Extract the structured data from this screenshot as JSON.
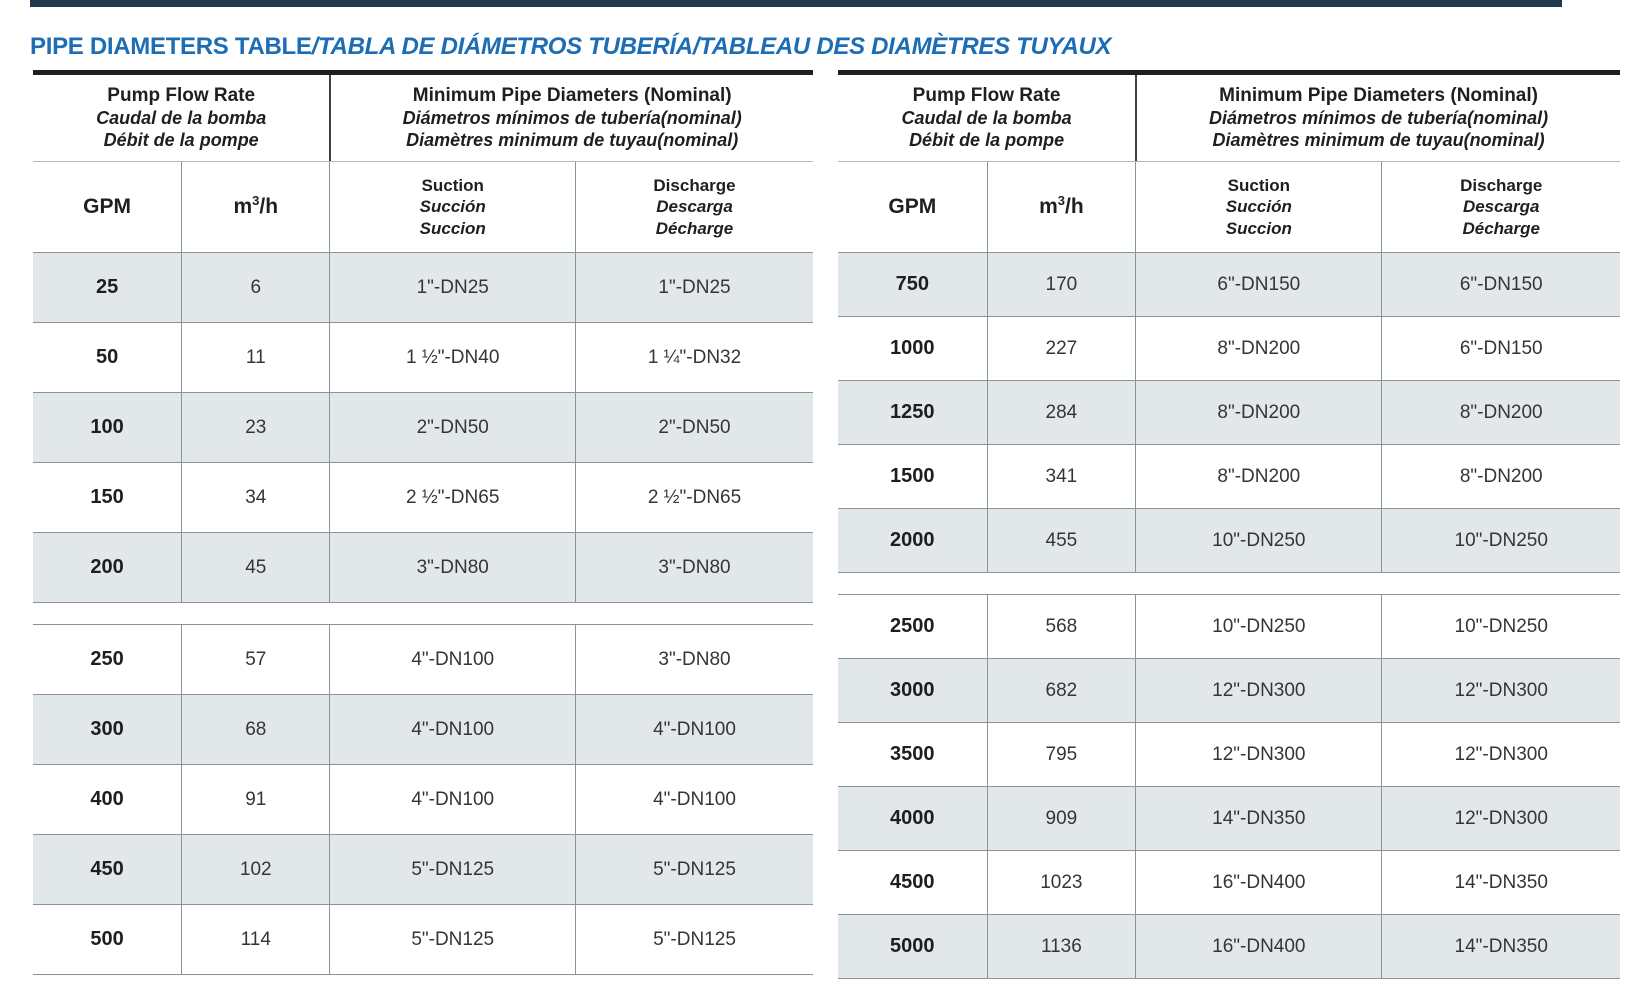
{
  "page": {
    "title_main": "PIPE DIAMETERS TABLE",
    "title_rest": "/TABLA DE DIÁMETROS TUBERÍA/TABLEAU DES DIAMÈTRES TUYAUX"
  },
  "colors": {
    "title_blue": "#1d6db5",
    "row_shade": "#e2e7ea",
    "grid_line": "#8d9499",
    "top_border": "#1f1f1d",
    "top_strip": "#22384e"
  },
  "header_labels": {
    "flow": [
      "Pump Flow Rate",
      "Caudal de la bomba",
      "Débit de la pompe"
    ],
    "diameters": [
      "Minimum Pipe Diameters (Nominal)",
      "Diámetros mínimos de tubería(nominal)",
      "Diamètres minimum de tuyau(nominal)"
    ],
    "gpm": "GPM",
    "m3h_prefix": "m",
    "m3h_sup": "3",
    "m3h_suffix": "/h",
    "suction": [
      "Suction",
      "Succión",
      "Succion"
    ],
    "discharge": [
      "Discharge",
      "Descarga",
      "Décharge"
    ]
  },
  "tables": [
    {
      "side": "left",
      "groups": [
        {
          "rows": [
            [
              "25",
              "6",
              "1\"-DN25",
              "1\"-DN25"
            ],
            [
              "50",
              "11",
              "1 ½\"-DN40",
              "1 ¼\"-DN32"
            ],
            [
              "100",
              "23",
              "2\"-DN50",
              "2\"-DN50"
            ],
            [
              "150",
              "34",
              "2 ½\"-DN65",
              "2 ½\"-DN65"
            ],
            [
              "200",
              "45",
              "3\"-DN80",
              "3\"-DN80"
            ]
          ]
        },
        {
          "rows": [
            [
              "250",
              "57",
              "4\"-DN100",
              "3\"-DN80"
            ],
            [
              "300",
              "68",
              "4\"-DN100",
              "4\"-DN100"
            ],
            [
              "400",
              "91",
              "4\"-DN100",
              "4\"-DN100"
            ],
            [
              "450",
              "102",
              "5\"-DN125",
              "5\"-DN125"
            ],
            [
              "500",
              "114",
              "5\"-DN125",
              "5\"-DN125"
            ]
          ]
        }
      ]
    },
    {
      "side": "right",
      "groups": [
        {
          "rows": [
            [
              "750",
              "170",
              "6\"-DN150",
              "6\"-DN150"
            ],
            [
              "1000",
              "227",
              "8\"-DN200",
              "6\"-DN150"
            ],
            [
              "1250",
              "284",
              "8\"-DN200",
              "8\"-DN200"
            ],
            [
              "1500",
              "341",
              "8\"-DN200",
              "8\"-DN200"
            ],
            [
              "2000",
              "455",
              "10\"-DN250",
              "10\"-DN250"
            ]
          ]
        },
        {
          "rows": [
            [
              "2500",
              "568",
              "10\"-DN250",
              "10\"-DN250"
            ],
            [
              "3000",
              "682",
              "12\"-DN300",
              "12\"-DN300"
            ],
            [
              "3500",
              "795",
              "12\"-DN300",
              "12\"-DN300"
            ],
            [
              "4000",
              "909",
              "14\"-DN350",
              "12\"-DN300"
            ],
            [
              "4500",
              "1023",
              "16\"-DN400",
              "14\"-DN350"
            ],
            [
              "5000",
              "1136",
              "16\"-DN400",
              "14\"-DN350"
            ]
          ]
        }
      ]
    }
  ]
}
